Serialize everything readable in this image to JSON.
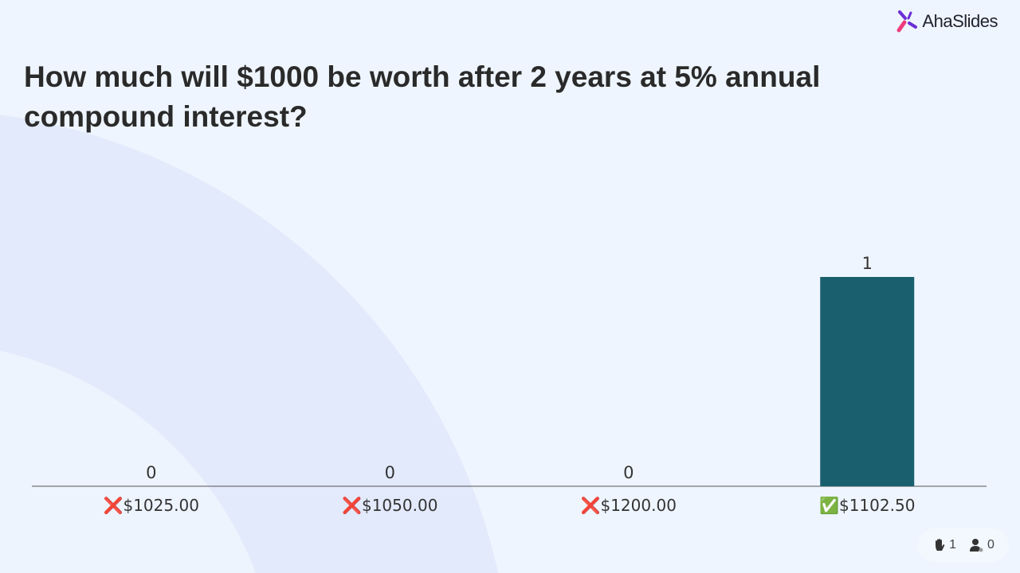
{
  "brand": {
    "name": "AhaSlides"
  },
  "question": "How much will $1000 be worth after 2 years at 5% annual compound interest?",
  "colors": {
    "bar": "#1a5f6e",
    "background": "#eef5fe",
    "ring": "#e2eafb",
    "correct": "#3bb54a",
    "wrong": "#e02020"
  },
  "chart_data": {
    "type": "bar",
    "categories": [
      "$1025.00",
      "$1050.00",
      "$1200.00",
      "$1102.50"
    ],
    "values": [
      0,
      0,
      0,
      1
    ],
    "correct": [
      false,
      false,
      false,
      true
    ],
    "ylim": [
      0,
      1
    ],
    "grid": false
  },
  "footer": {
    "responses_icon": "raised-hand-icon",
    "responses": "1",
    "audience_icon": "user-online-icon",
    "audience": "0"
  }
}
